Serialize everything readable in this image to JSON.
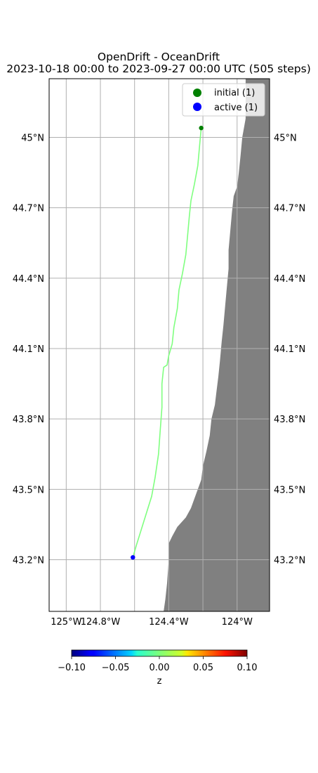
{
  "title": "OpenDrift - OceanDrift",
  "subtitle": "2023-10-18 00:00 to 2023-09-27 00:00 UTC (505 steps)",
  "map": {
    "lon_range": [
      -125.1,
      -123.81
    ],
    "lat_range": [
      42.98,
      45.25
    ],
    "lat_ticks": [
      {
        "value": 43.2,
        "label": "43.2°N"
      },
      {
        "value": 43.5,
        "label": "43.5°N"
      },
      {
        "value": 43.8,
        "label": "43.8°N"
      },
      {
        "value": 44.1,
        "label": "44.1°N"
      },
      {
        "value": 44.4,
        "label": "44.4°N"
      },
      {
        "value": 44.7,
        "label": "44.7°N"
      },
      {
        "value": 45.0,
        "label": "45°N"
      }
    ],
    "lon_ticks": [
      {
        "value": -125.0,
        "label": "125°W"
      },
      {
        "value": -124.8,
        "label": "124.8°W"
      },
      {
        "value": -124.4,
        "label": "124.4°W"
      },
      {
        "value": -124.0,
        "label": "124°W"
      }
    ],
    "extra_lon_gridlines": [
      -124.6,
      -124.2
    ],
    "grid": true,
    "land_color": "#808080",
    "ocean_color": "#ffffff",
    "coastline": [
      [
        -123.81,
        45.25
      ],
      [
        -123.8,
        45.25
      ],
      [
        -123.81,
        45.25
      ],
      [
        -123.81,
        45.25
      ]
    ],
    "coast_points": [
      [
        -123.81,
        45.25
      ],
      [
        -123.95,
        45.25
      ],
      [
        -123.95,
        45.08
      ],
      [
        -123.97,
        45.0
      ],
      [
        -123.98,
        44.92
      ],
      [
        -123.99,
        44.85
      ],
      [
        -124.0,
        44.79
      ],
      [
        -124.02,
        44.75
      ],
      [
        -124.03,
        44.68
      ],
      [
        -124.04,
        44.6
      ],
      [
        -124.05,
        44.52
      ],
      [
        -124.05,
        44.44
      ],
      [
        -124.06,
        44.36
      ],
      [
        -124.07,
        44.28
      ],
      [
        -124.08,
        44.2
      ],
      [
        -124.09,
        44.13
      ],
      [
        -124.1,
        44.05
      ],
      [
        -124.11,
        43.98
      ],
      [
        -124.12,
        43.92
      ],
      [
        -124.13,
        43.86
      ],
      [
        -124.15,
        43.8
      ],
      [
        -124.16,
        43.73
      ],
      [
        -124.18,
        43.66
      ],
      [
        -124.2,
        43.6
      ],
      [
        -124.21,
        43.54
      ],
      [
        -124.24,
        43.48
      ],
      [
        -124.27,
        43.42
      ],
      [
        -124.3,
        43.38
      ],
      [
        -124.35,
        43.34
      ],
      [
        -124.38,
        43.3
      ],
      [
        -124.4,
        43.27
      ],
      [
        -124.4,
        43.2
      ],
      [
        -124.41,
        43.1
      ],
      [
        -124.42,
        43.03
      ],
      [
        -124.43,
        42.98
      ],
      [
        -123.81,
        42.98
      ]
    ],
    "trajectory_color": "#80ff80",
    "trajectory": [
      [
        -124.21,
        45.04
      ],
      [
        -124.22,
        44.96
      ],
      [
        -124.23,
        44.88
      ],
      [
        -124.25,
        44.8
      ],
      [
        -124.27,
        44.73
      ],
      [
        -124.28,
        44.66
      ],
      [
        -124.29,
        44.58
      ],
      [
        -124.3,
        44.5
      ],
      [
        -124.32,
        44.42
      ],
      [
        -124.34,
        44.35
      ],
      [
        -124.35,
        44.27
      ],
      [
        -124.37,
        44.19
      ],
      [
        -124.38,
        44.12
      ],
      [
        -124.4,
        44.07
      ],
      [
        -124.41,
        44.03
      ],
      [
        -124.43,
        44.02
      ],
      [
        -124.44,
        43.95
      ],
      [
        -124.44,
        43.85
      ],
      [
        -124.45,
        43.75
      ],
      [
        -124.46,
        43.65
      ],
      [
        -124.48,
        43.55
      ],
      [
        -124.5,
        43.47
      ],
      [
        -124.53,
        43.4
      ],
      [
        -124.56,
        43.33
      ],
      [
        -124.59,
        43.26
      ],
      [
        -124.61,
        43.21
      ]
    ],
    "initial_point": {
      "lon": -124.21,
      "lat": 45.04,
      "color": "#008000"
    },
    "active_point": {
      "lon": -124.61,
      "lat": 43.21,
      "color": "#0000ff"
    }
  },
  "legend": {
    "placement": "top-right",
    "items": [
      {
        "label": "initial (1)",
        "color": "#008000"
      },
      {
        "label": "active (1)",
        "color": "#0000ff"
      }
    ]
  },
  "colorbar": {
    "label": "z",
    "colormap": "jet",
    "range": [
      -0.1,
      0.1
    ],
    "ticks": [
      {
        "value": -0.1,
        "label": "−0.10"
      },
      {
        "value": -0.05,
        "label": "−0.05"
      },
      {
        "value": 0.0,
        "label": "0.00"
      },
      {
        "value": 0.05,
        "label": "0.05"
      },
      {
        "value": 0.1,
        "label": "0.10"
      }
    ]
  }
}
